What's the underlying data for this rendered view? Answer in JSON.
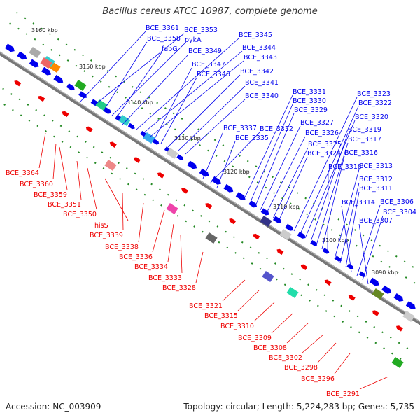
{
  "title": "Bacillus cereus ATCC 10987, complete genome",
  "accession": "Accession: NC_003909",
  "summary": "Topology: circular; Length: 5,224,283 bp; Genes: 5,735",
  "colors": {
    "plus_strand": "#0000ee",
    "minus_strand": "#ee0000",
    "backbone": "#777777",
    "tick_marks": "#228822"
  },
  "ticks": [
    "3160 kbp",
    "3150 kbp",
    "3140 kbp",
    "3130 kbp",
    "3120 kbp",
    "3110 kbp",
    "3100 kbp",
    "3090 kbp"
  ],
  "top_labels": [
    "BCE_3361",
    "BCE_3353",
    "BCE_3358",
    "pykA",
    "fabG",
    "BCE_3349",
    "BCE_3345",
    "BCE_3344",
    "BCE_3343",
    "BCE_3347",
    "BCE_3346",
    "BCE_3342",
    "BCE_3341",
    "BCE_3340",
    "BCE_3337",
    "BCE_3332",
    "BCE_3335",
    "BCE_3331",
    "BCE_3330",
    "BCE_3329",
    "BCE_3327",
    "BCE_3326",
    "BCE_3325",
    "BCE_3324",
    "BCE_3323",
    "BCE_3322",
    "BCE_3320",
    "BCE_3319",
    "BCE_3317",
    "BCE_3316",
    "BCE_3318",
    "BCE_3313",
    "BCE_3312",
    "BCE_3311",
    "BCE_3314",
    "BCE_3306",
    "BCE_3304",
    "BCE_3307"
  ],
  "bottom_labels": [
    "BCE_3364",
    "BCE_3360",
    "BCE_3359",
    "BCE_3351",
    "BCE_3350",
    "hisS",
    "BCE_3339",
    "BCE_3338",
    "BCE_3336",
    "BCE_3334",
    "BCE_3333",
    "BCE_3328",
    "BCE_3321",
    "BCE_3315",
    "BCE_3310",
    "BCE_3309",
    "BCE_3308",
    "BCE_3302",
    "BCE_3298",
    "BCE_3296",
    "BCE_3291"
  ]
}
